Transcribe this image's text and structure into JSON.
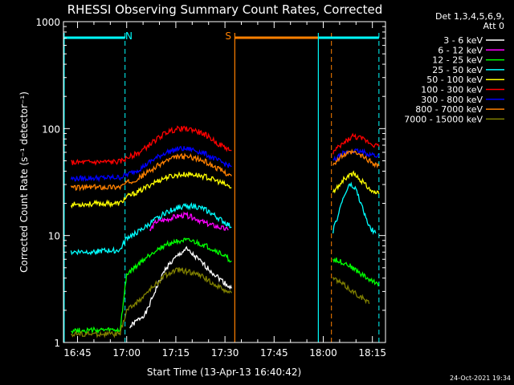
{
  "chart_data": {
    "type": "line",
    "title": "RHESSI Observing Summary Count Rates, Corrected",
    "xlabel": "Start Time (13-Apr-13 16:40:42)",
    "ylabel": "Corrected Count Rate (s⁻¹ detector⁻¹)",
    "y_scale": "log",
    "ylim": [
      1,
      1000
    ],
    "xlim": [
      "16:40:42",
      "18:19:00"
    ],
    "x_ticks": [
      "16:45",
      "17:00",
      "17:15",
      "17:30",
      "17:45",
      "18:00",
      "18:15"
    ],
    "y_ticks": [
      "1",
      "10",
      "100",
      "1000"
    ],
    "legend_header": [
      "Det 1,3,4,5,6,9,",
      "Att 0"
    ],
    "legend_position": "right",
    "background": "#000000",
    "series": [
      {
        "name": "3 - 6 keV",
        "color": "#ffffff",
        "points": [
          [
            "17:01",
            1.4
          ],
          [
            "17:06",
            1.9
          ],
          [
            "17:09",
            3.2
          ],
          [
            "17:12",
            5.0
          ],
          [
            "17:15",
            6.2
          ],
          [
            "17:18",
            7.5
          ],
          [
            "17:21",
            6.3
          ],
          [
            "17:24",
            5.2
          ],
          [
            "17:27",
            4.3
          ],
          [
            "17:30",
            3.6
          ],
          [
            "17:32",
            3.2
          ]
        ]
      },
      {
        "name": "6 - 12 keV",
        "color": "#ff00ff",
        "points": [
          [
            "17:07",
            11.0
          ],
          [
            "17:09",
            13.5
          ],
          [
            "17:12",
            14.0
          ],
          [
            "17:15",
            15.0
          ],
          [
            "17:18",
            15.5
          ],
          [
            "17:21",
            14.5
          ],
          [
            "17:24",
            13.0
          ],
          [
            "17:28",
            12.0
          ],
          [
            "17:31",
            11.2
          ]
        ]
      },
      {
        "name": "12 - 25 keV",
        "color": "#00ff00",
        "points": [
          [
            "16:43",
            1.3
          ],
          [
            "16:50",
            1.3
          ],
          [
            "16:58",
            1.3
          ],
          [
            "17:00",
            4.3
          ],
          [
            "17:04",
            5.5
          ],
          [
            "17:08",
            7.0
          ],
          [
            "17:12",
            8.2
          ],
          [
            "17:16",
            9.0
          ],
          [
            "17:20",
            8.8
          ],
          [
            "17:24",
            8.0
          ],
          [
            "17:28",
            7.0
          ],
          [
            "17:32",
            5.8
          ],
          [
            "18:03",
            6.0
          ],
          [
            "18:07",
            5.5
          ],
          [
            "18:11",
            4.5
          ],
          [
            "18:15",
            3.7
          ],
          [
            "18:17",
            3.6
          ]
        ]
      },
      {
        "name": "25 - 50 keV",
        "color": "#00ffff",
        "points": [
          [
            "16:43",
            7.0
          ],
          [
            "16:50",
            7.1
          ],
          [
            "16:58",
            7.3
          ],
          [
            "17:00",
            9.5
          ],
          [
            "17:04",
            11.0
          ],
          [
            "17:08",
            13.5
          ],
          [
            "17:12",
            16.5
          ],
          [
            "17:16",
            18.5
          ],
          [
            "17:20",
            19.0
          ],
          [
            "17:24",
            17.5
          ],
          [
            "17:28",
            14.5
          ],
          [
            "17:32",
            12.0
          ],
          [
            "18:03",
            11.0
          ],
          [
            "18:06",
            22.0
          ],
          [
            "18:08",
            30.0
          ],
          [
            "18:10",
            27.0
          ],
          [
            "18:12",
            18.0
          ],
          [
            "18:14",
            12.0
          ],
          [
            "18:16",
            10.5
          ]
        ]
      },
      {
        "name": "50 - 100 keV",
        "color": "#ffff00",
        "points": [
          [
            "16:43",
            19.5
          ],
          [
            "16:50",
            19.8
          ],
          [
            "16:58",
            20.0
          ],
          [
            "17:00",
            23.0
          ],
          [
            "17:04",
            26.0
          ],
          [
            "17:08",
            31.0
          ],
          [
            "17:12",
            35.0
          ],
          [
            "17:16",
            37.0
          ],
          [
            "17:20",
            37.5
          ],
          [
            "17:24",
            35.5
          ],
          [
            "17:28",
            32.0
          ],
          [
            "17:32",
            28.0
          ],
          [
            "18:03",
            25.0
          ],
          [
            "18:06",
            33.0
          ],
          [
            "18:09",
            38.0
          ],
          [
            "18:12",
            32.0
          ],
          [
            "18:15",
            26.0
          ],
          [
            "18:17",
            24.5
          ]
        ]
      },
      {
        "name": "100 - 300 keV",
        "color": "#ff0000",
        "points": [
          [
            "16:43",
            48.0
          ],
          [
            "16:50",
            48.5
          ],
          [
            "16:58",
            49.0
          ],
          [
            "17:00",
            53.0
          ],
          [
            "17:04",
            60.0
          ],
          [
            "17:08",
            75.0
          ],
          [
            "17:12",
            92.0
          ],
          [
            "17:16",
            100.0
          ],
          [
            "17:20",
            98.0
          ],
          [
            "17:24",
            88.0
          ],
          [
            "17:28",
            72.0
          ],
          [
            "17:32",
            62.0
          ],
          [
            "18:03",
            60.0
          ],
          [
            "18:06",
            72.0
          ],
          [
            "18:09",
            85.0
          ],
          [
            "18:12",
            80.0
          ],
          [
            "18:15",
            72.0
          ],
          [
            "18:17",
            68.0
          ]
        ]
      },
      {
        "name": "300 - 800 keV",
        "color": "#0000ff",
        "points": [
          [
            "16:43",
            34.0
          ],
          [
            "16:50",
            34.5
          ],
          [
            "16:58",
            35.0
          ],
          [
            "17:00",
            37.0
          ],
          [
            "17:04",
            42.0
          ],
          [
            "17:08",
            51.0
          ],
          [
            "17:12",
            60.0
          ],
          [
            "17:16",
            65.0
          ],
          [
            "17:20",
            64.0
          ],
          [
            "17:24",
            58.0
          ],
          [
            "17:28",
            50.0
          ],
          [
            "17:32",
            44.0
          ],
          [
            "18:03",
            50.0
          ],
          [
            "18:06",
            58.0
          ],
          [
            "18:09",
            62.0
          ],
          [
            "18:12",
            60.0
          ],
          [
            "18:15",
            57.0
          ],
          [
            "18:17",
            55.0
          ]
        ]
      },
      {
        "name": "800 - 7000 keV",
        "color": "#ff8000",
        "points": [
          [
            "16:43",
            28.0
          ],
          [
            "16:50",
            28.3
          ],
          [
            "16:58",
            28.5
          ],
          [
            "17:00",
            31.0
          ],
          [
            "17:04",
            35.0
          ],
          [
            "17:08",
            42.0
          ],
          [
            "17:12",
            50.0
          ],
          [
            "17:16",
            55.0
          ],
          [
            "17:20",
            54.0
          ],
          [
            "17:24",
            49.0
          ],
          [
            "17:28",
            42.0
          ],
          [
            "17:32",
            36.0
          ],
          [
            "18:03",
            47.0
          ],
          [
            "18:06",
            56.0
          ],
          [
            "18:09",
            60.0
          ],
          [
            "18:12",
            55.0
          ],
          [
            "18:15",
            48.0
          ],
          [
            "18:17",
            45.0
          ]
        ]
      },
      {
        "name": "7000 - 15000 keV",
        "color": "#808000",
        "points": [
          [
            "16:43",
            1.2
          ],
          [
            "16:50",
            1.2
          ],
          [
            "16:58",
            1.2
          ],
          [
            "17:00",
            2.0
          ],
          [
            "17:04",
            2.5
          ],
          [
            "17:08",
            3.3
          ],
          [
            "17:12",
            4.3
          ],
          [
            "17:16",
            4.8
          ],
          [
            "17:20",
            4.5
          ],
          [
            "17:24",
            4.0
          ],
          [
            "17:28",
            3.3
          ],
          [
            "17:32",
            2.9
          ],
          [
            "18:03",
            4.0
          ],
          [
            "18:06",
            3.5
          ],
          [
            "18:09",
            3.0
          ],
          [
            "18:12",
            2.6
          ],
          [
            "18:14",
            2.3
          ]
        ]
      }
    ],
    "flags": [
      {
        "label": "N",
        "color": "#00ffff",
        "start": "16:40:42",
        "end": "16:59:30",
        "boundary_lines": [
          "16:59:30"
        ]
      },
      {
        "label": "S",
        "color": "#ff8000",
        "start": "17:33:00",
        "end": "18:02:30",
        "boundary_lines": [
          "17:33:00",
          "18:02:30"
        ]
      },
      {
        "label": "",
        "color": "#00ffff",
        "start": "17:58:30",
        "end": "18:17:00",
        "boundary_lines": [
          "17:58:30",
          "18:17:00"
        ]
      }
    ],
    "footer": "24-Oct-2021 19:34"
  }
}
